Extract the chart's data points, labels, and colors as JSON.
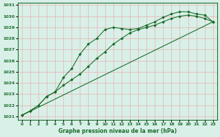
{
  "bg_color": "#d8f0e8",
  "grid_color": "#e8b8b8",
  "line_color": "#1a6b2a",
  "xlabel": "Graphe pression niveau de la mer (hPa)",
  "xlim": [
    -0.5,
    23.5
  ],
  "ylim": [
    1020.7,
    1031.2
  ],
  "yticks": [
    1021,
    1022,
    1023,
    1024,
    1025,
    1026,
    1027,
    1028,
    1029,
    1030,
    1031
  ],
  "xticks": [
    0,
    1,
    2,
    3,
    4,
    5,
    6,
    7,
    8,
    9,
    10,
    11,
    12,
    13,
    14,
    15,
    16,
    17,
    18,
    19,
    20,
    21,
    22,
    23
  ],
  "line1_x": [
    0,
    1,
    2,
    3,
    4,
    5,
    6,
    7,
    8,
    9,
    10,
    11,
    12,
    13,
    14,
    15,
    16,
    17,
    18,
    19,
    20,
    21,
    22,
    23
  ],
  "line1_y": [
    1021.1,
    1021.5,
    1022.0,
    1022.8,
    1023.2,
    1024.5,
    1025.3,
    1026.6,
    1027.5,
    1028.0,
    1028.8,
    1029.0,
    1028.9,
    1028.8,
    1028.9,
    1029.2,
    1029.5,
    1029.9,
    1030.2,
    1030.4,
    1030.4,
    1030.2,
    1030.1,
    1029.5
  ],
  "line2_x": [
    0,
    1,
    2,
    3,
    4,
    5,
    6,
    7,
    8,
    9,
    10,
    11,
    12,
    13,
    14,
    15,
    16,
    17,
    18,
    19,
    20,
    21,
    22,
    23
  ],
  "line2_y": [
    1021.1,
    1021.5,
    1022.0,
    1022.8,
    1023.2,
    1023.8,
    1024.3,
    1024.8,
    1025.5,
    1026.2,
    1026.8,
    1027.5,
    1028.0,
    1028.5,
    1028.8,
    1029.0,
    1029.2,
    1029.5,
    1029.8,
    1030.0,
    1030.1,
    1030.0,
    1029.8,
    1029.5
  ],
  "line3_x": [
    0,
    23
  ],
  "line3_y": [
    1021.1,
    1029.5
  ]
}
